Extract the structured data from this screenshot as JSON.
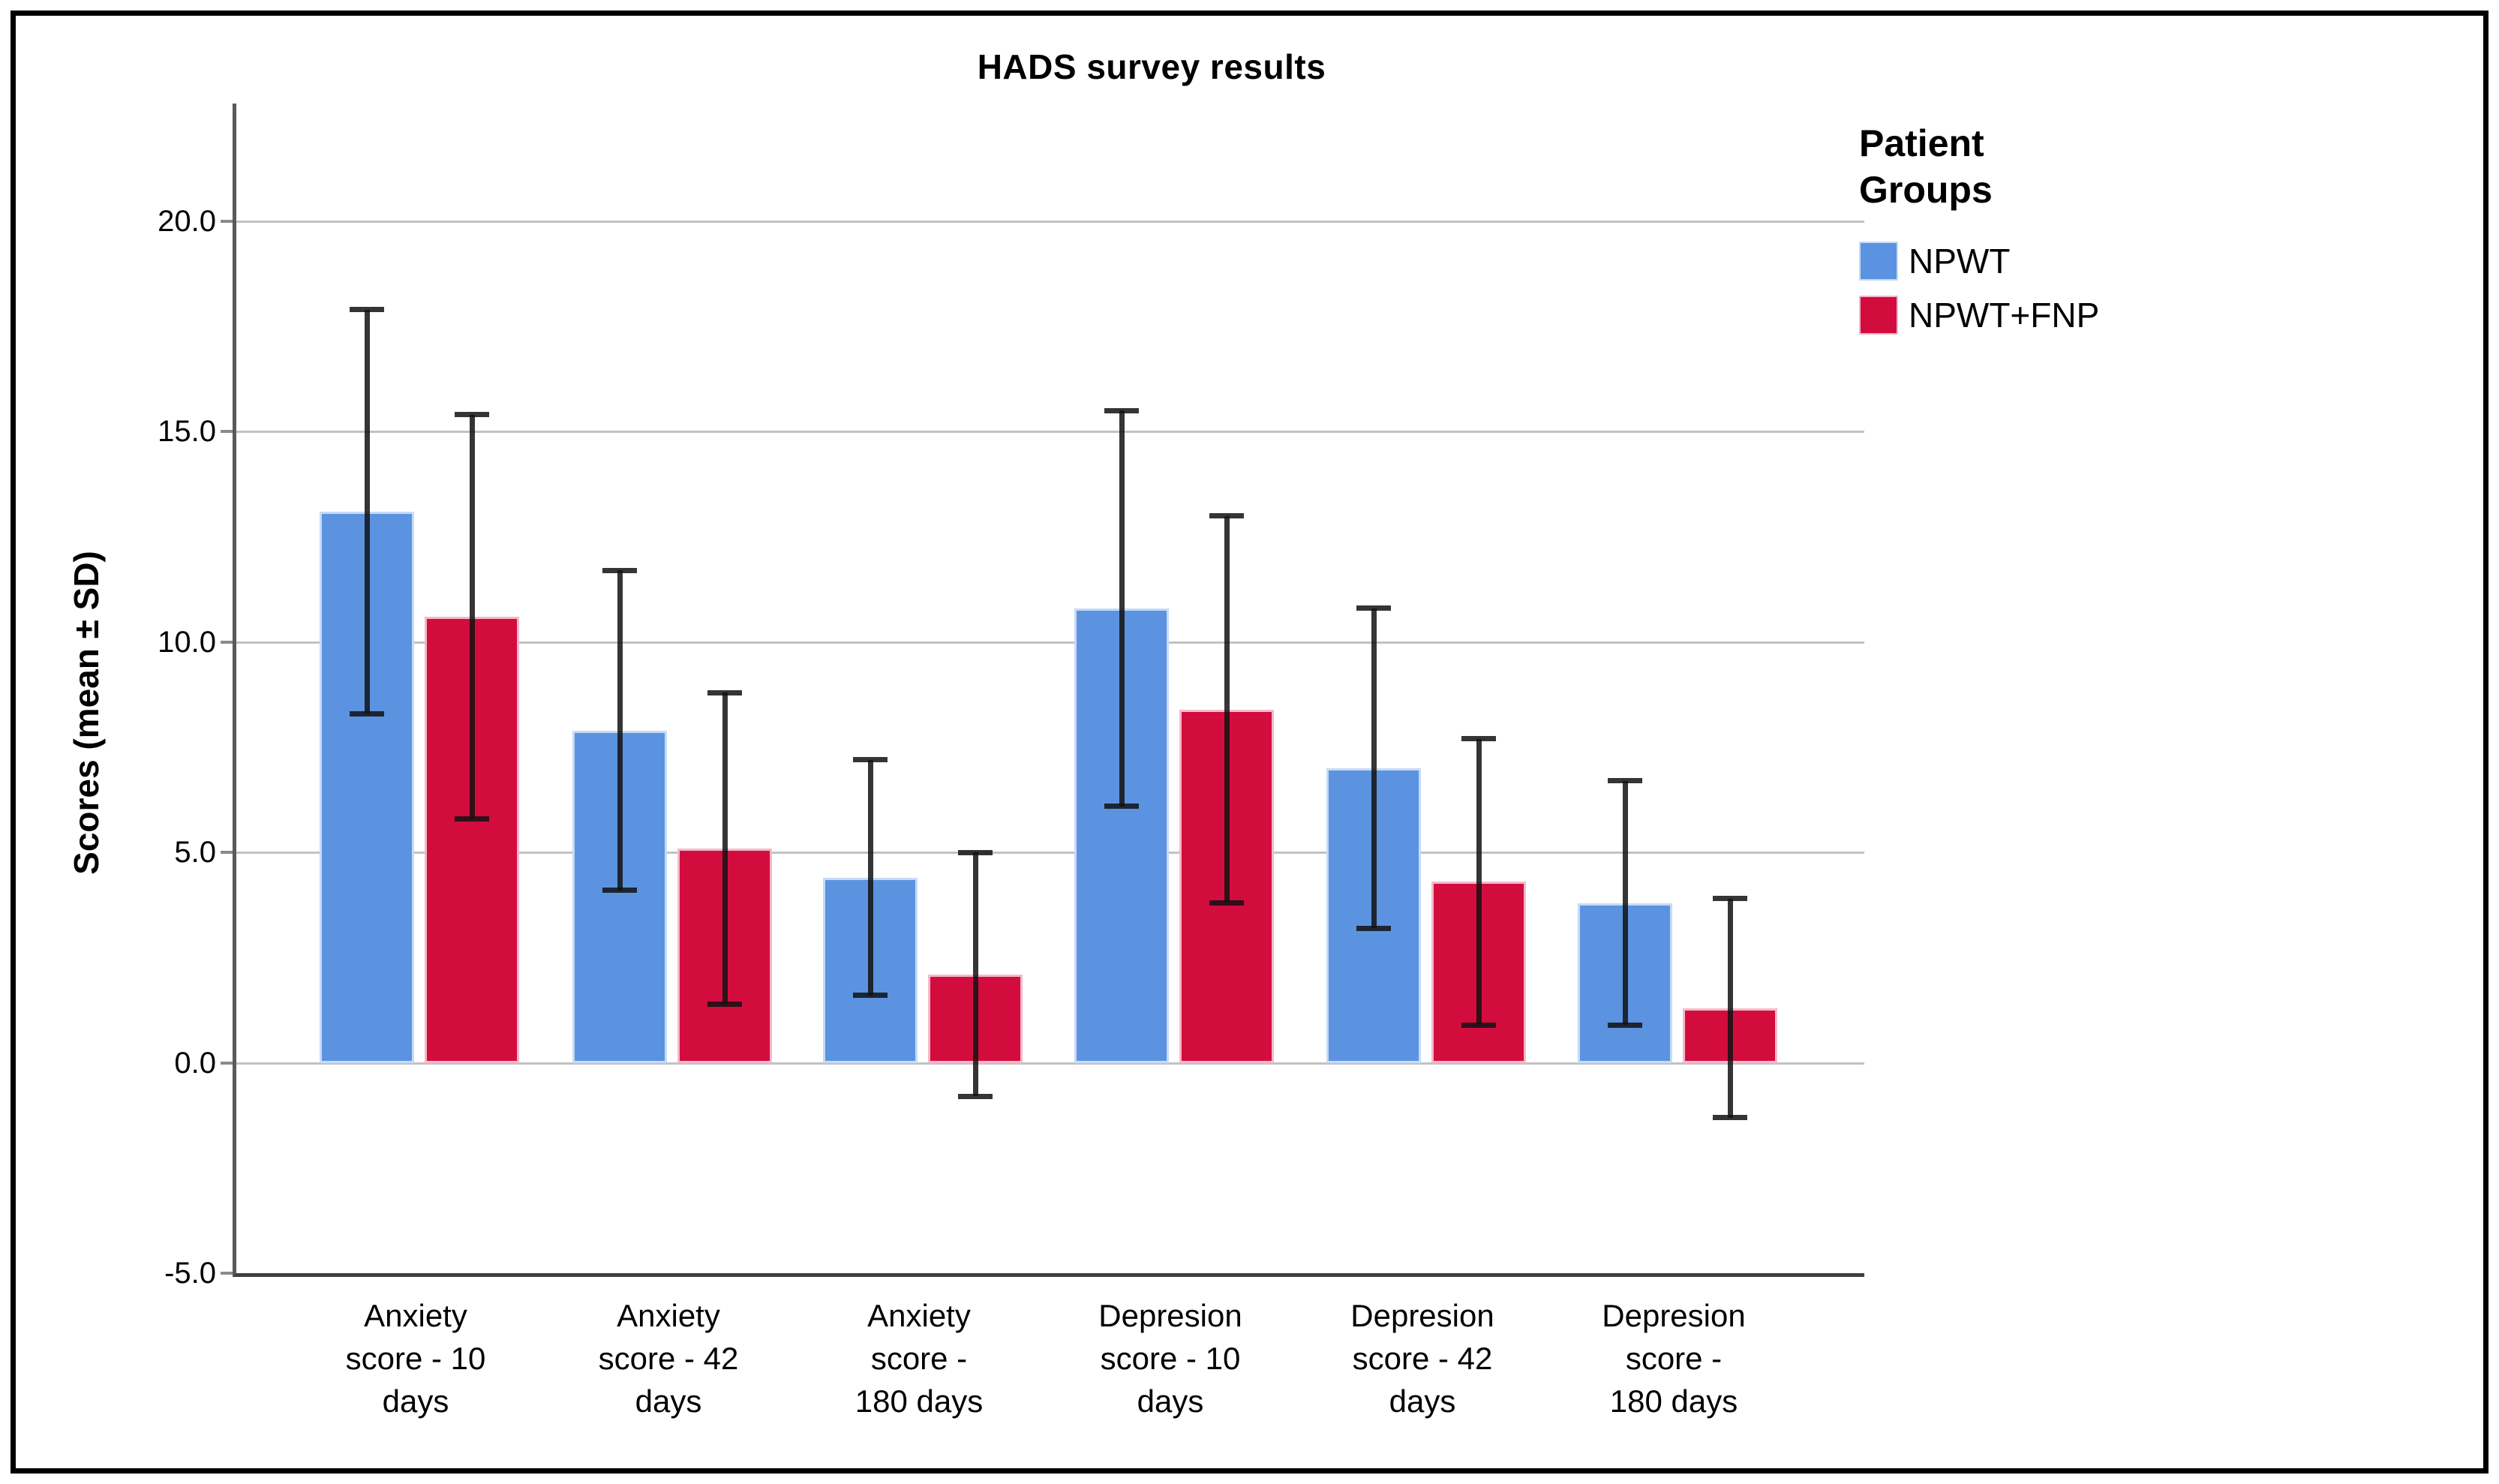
{
  "figure": {
    "title": "HADS survey results",
    "background_color": "#ffffff",
    "border_color": "#000000"
  },
  "y_axis": {
    "title": "Scores (mean ± SD)",
    "tick_labels": [
      "20.0",
      "15.0",
      "10.0",
      "5.0",
      "0.0",
      "-5.0"
    ]
  },
  "legend": {
    "title": "Patient Groups"
  },
  "style": {
    "gridline_color": "#c2c2c2",
    "axis_color": "#3f3f3f",
    "error_bar_color": "rgba(18,18,18,0.85)"
  },
  "chart_data": {
    "type": "bar",
    "title": "HADS survey results",
    "xlabel": "",
    "ylabel": "Scores (mean ± SD)",
    "error_bars": "mean ± SD",
    "grid": true,
    "legend_title": "Patient Groups",
    "legend_position": "right",
    "ylim": [
      -5,
      22.8
    ],
    "yticks": [
      20,
      15,
      10,
      5,
      0,
      -5
    ],
    "categories": [
      "Anxiety score - 10 days",
      "Anxiety score - 42 days",
      "Anxiety score - 180 days",
      "Depresion score - 10 days",
      "Depresion score - 42 days",
      "Depresion score - 180 days"
    ],
    "category_label_lines": [
      [
        "Anxiety",
        "score - 10",
        "days"
      ],
      [
        "Anxiety",
        "score - 42",
        "days"
      ],
      [
        "Anxiety",
        "score -",
        "180 days"
      ],
      [
        "Depresion",
        "score - 10",
        "days"
      ],
      [
        "Depresion",
        "score - 42",
        "days"
      ],
      [
        "Depresion",
        "score -",
        "180 days"
      ]
    ],
    "series": [
      {
        "name": "NPWT",
        "color": "#5B93E1",
        "edge_color": "#c6dbf6",
        "means": [
          13.1,
          7.9,
          4.4,
          10.8,
          7.0,
          3.8
        ],
        "sd": [
          4.8,
          3.8,
          2.8,
          4.7,
          3.8,
          2.9
        ]
      },
      {
        "name": "NPWT+FNP",
        "color": "#D30C3E",
        "edge_color": "#f3b9ca",
        "means": [
          10.6,
          5.1,
          2.1,
          8.4,
          4.3,
          1.3
        ],
        "sd": [
          4.8,
          3.7,
          2.9,
          4.6,
          3.4,
          2.6
        ]
      }
    ]
  }
}
